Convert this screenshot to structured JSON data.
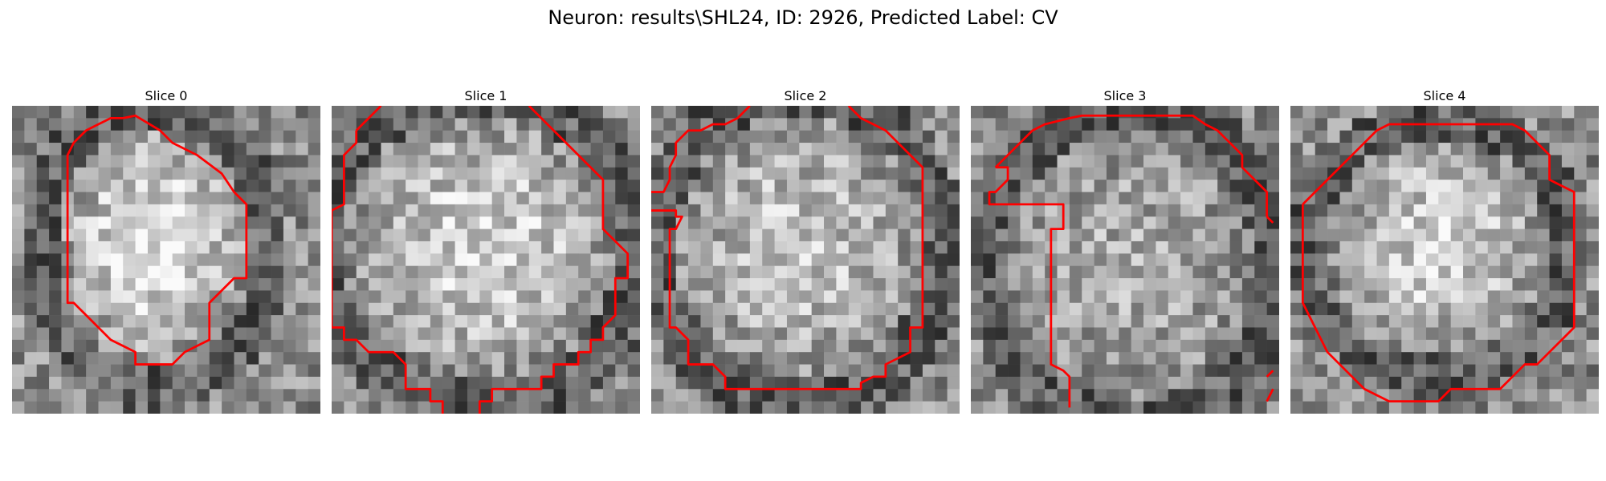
{
  "figure": {
    "title": "Neuron: results\\SHL24, ID: 2926, Predicted Label: CV",
    "contour_color": "#ff0000",
    "grid_size": 25
  },
  "slices": [
    {
      "label": "Slice 0",
      "seed": 11,
      "blob": {
        "cx": 11.5,
        "cy": 11.5,
        "rx": 8,
        "ry": 10,
        "gain": 85
      },
      "contours": [
        [
          [
            9,
            1
          ],
          [
            10,
            0.8
          ],
          [
            12,
            2
          ],
          [
            13,
            3
          ],
          [
            15,
            4
          ],
          [
            17,
            5.5
          ],
          [
            18,
            7
          ],
          [
            19,
            8
          ],
          [
            19,
            14
          ],
          [
            18,
            14
          ],
          [
            17,
            15
          ],
          [
            16,
            16
          ],
          [
            16,
            19
          ],
          [
            14,
            20
          ],
          [
            13,
            21
          ],
          [
            10,
            21
          ],
          [
            10,
            20
          ],
          [
            9,
            19.5
          ],
          [
            8,
            19
          ],
          [
            7,
            18
          ],
          [
            6,
            17
          ],
          [
            5,
            16
          ],
          [
            4.5,
            16
          ],
          [
            4.5,
            4
          ],
          [
            5,
            3
          ],
          [
            6,
            2
          ],
          [
            7,
            1.5
          ],
          [
            8,
            1
          ],
          [
            9,
            1
          ]
        ]
      ]
    },
    {
      "label": "Slice 1",
      "seed": 23,
      "blob": {
        "cx": 12,
        "cy": 11.5,
        "rx": 11,
        "ry": 11,
        "gain": 70
      },
      "contours": [
        [
          [
            2,
            2
          ],
          [
            4,
            0
          ]
        ],
        [
          [
            16,
            0
          ],
          [
            18,
            2
          ],
          [
            22,
            6
          ],
          [
            22,
            10
          ],
          [
            23,
            11
          ],
          [
            24,
            12
          ],
          [
            24,
            14
          ],
          [
            23,
            14
          ],
          [
            23,
            17
          ],
          [
            22,
            18
          ],
          [
            22,
            19
          ],
          [
            21,
            19
          ],
          [
            21,
            20
          ],
          [
            20,
            20
          ],
          [
            20,
            21
          ],
          [
            18,
            21
          ],
          [
            18,
            22
          ],
          [
            17,
            22
          ],
          [
            17,
            23
          ],
          [
            13,
            23
          ],
          [
            13,
            24
          ],
          [
            12,
            24
          ],
          [
            12,
            25
          ]
        ],
        [
          [
            2,
            2
          ],
          [
            2,
            3
          ],
          [
            1,
            4
          ],
          [
            1,
            8
          ],
          [
            0,
            8.5
          ],
          [
            0,
            18
          ],
          [
            1,
            18
          ],
          [
            1,
            19
          ],
          [
            2,
            19
          ],
          [
            3,
            20
          ],
          [
            5,
            20
          ],
          [
            6,
            21
          ],
          [
            6,
            23
          ],
          [
            8,
            23
          ],
          [
            8,
            24
          ],
          [
            9,
            24
          ],
          [
            9,
            25
          ]
        ]
      ]
    },
    {
      "label": "Slice 2",
      "seed": 37,
      "blob": {
        "cx": 12,
        "cy": 11.5,
        "rx": 10,
        "ry": 11,
        "gain": 55
      },
      "contours": [
        [
          [
            0,
            7
          ],
          [
            1,
            7
          ],
          [
            1.5,
            6
          ],
          [
            1.5,
            5
          ],
          [
            2,
            4
          ],
          [
            2,
            3
          ],
          [
            3,
            2
          ],
          [
            4,
            2
          ],
          [
            5,
            1.5
          ],
          [
            6,
            1.5
          ],
          [
            7,
            1
          ],
          [
            8,
            0
          ]
        ],
        [
          [
            16,
            0
          ],
          [
            17,
            1
          ],
          [
            18,
            1.5
          ],
          [
            19,
            2
          ],
          [
            20,
            3
          ],
          [
            21,
            4
          ],
          [
            22,
            5
          ],
          [
            22,
            18
          ],
          [
            21,
            18
          ],
          [
            21,
            20
          ],
          [
            19,
            21
          ],
          [
            19,
            22
          ],
          [
            18,
            22
          ],
          [
            17,
            22.5
          ],
          [
            17,
            23
          ],
          [
            6,
            23
          ],
          [
            6,
            22
          ],
          [
            5,
            21
          ],
          [
            3,
            21
          ],
          [
            3,
            19
          ],
          [
            2,
            18
          ],
          [
            1.5,
            18
          ],
          [
            1.5,
            10
          ],
          [
            2,
            10
          ],
          [
            2.5,
            9
          ],
          [
            2,
            9
          ],
          [
            2,
            8.5
          ],
          [
            0,
            8.5
          ]
        ]
      ]
    },
    {
      "label": "Slice 3",
      "seed": 53,
      "blob": {
        "cx": 13,
        "cy": 13,
        "rx": 10,
        "ry": 11,
        "gain": 30
      },
      "contours": [
        [
          [
            2,
            5
          ],
          [
            3,
            4
          ],
          [
            4,
            3
          ],
          [
            5,
            2
          ],
          [
            6,
            1.5
          ],
          [
            8,
            1
          ],
          [
            9,
            0.8
          ],
          [
            18,
            0.8
          ],
          [
            19,
            1.5
          ],
          [
            20,
            2
          ],
          [
            21,
            3
          ],
          [
            22,
            4
          ],
          [
            22,
            5
          ],
          [
            23,
            6
          ],
          [
            24,
            7
          ],
          [
            24,
            9
          ]
        ],
        [
          [
            24,
            9
          ],
          [
            24.5,
            9.5
          ]
        ],
        [
          [
            2,
            5
          ],
          [
            3,
            5
          ],
          [
            3,
            6
          ],
          [
            2,
            7
          ],
          [
            1.5,
            7
          ],
          [
            1.5,
            8
          ],
          [
            7.5,
            8
          ],
          [
            7.5,
            10
          ],
          [
            6.5,
            10
          ],
          [
            6.5,
            21
          ],
          [
            7.5,
            21.5
          ],
          [
            8,
            22
          ],
          [
            8,
            24.5
          ]
        ],
        [
          [
            24,
            22
          ],
          [
            24.5,
            21.5
          ]
        ],
        [
          [
            24.5,
            23
          ],
          [
            24,
            24
          ]
        ]
      ]
    },
    {
      "label": "Slice 4",
      "seed": 71,
      "blob": {
        "cx": 12,
        "cy": 11.5,
        "rx": 9,
        "ry": 9,
        "gain": 70
      },
      "contours": [
        [
          [
            1,
            8
          ],
          [
            2,
            7
          ],
          [
            3,
            6
          ],
          [
            4,
            5
          ],
          [
            5,
            4
          ],
          [
            6,
            3
          ],
          [
            7,
            2
          ],
          [
            8,
            1.5
          ],
          [
            18,
            1.5
          ],
          [
            19,
            2
          ],
          [
            20,
            3
          ],
          [
            21,
            4
          ],
          [
            21,
            6
          ],
          [
            22,
            6.5
          ],
          [
            23,
            7
          ],
          [
            23,
            18
          ],
          [
            22,
            19
          ],
          [
            21,
            20
          ],
          [
            20,
            21
          ],
          [
            19,
            21
          ],
          [
            18,
            22
          ],
          [
            17,
            23
          ],
          [
            13,
            23
          ],
          [
            12,
            24
          ],
          [
            8,
            24
          ],
          [
            6,
            23
          ],
          [
            5,
            22
          ],
          [
            4,
            21
          ],
          [
            3,
            20
          ],
          [
            2,
            18
          ],
          [
            1,
            16
          ],
          [
            1,
            8
          ]
        ]
      ]
    }
  ]
}
